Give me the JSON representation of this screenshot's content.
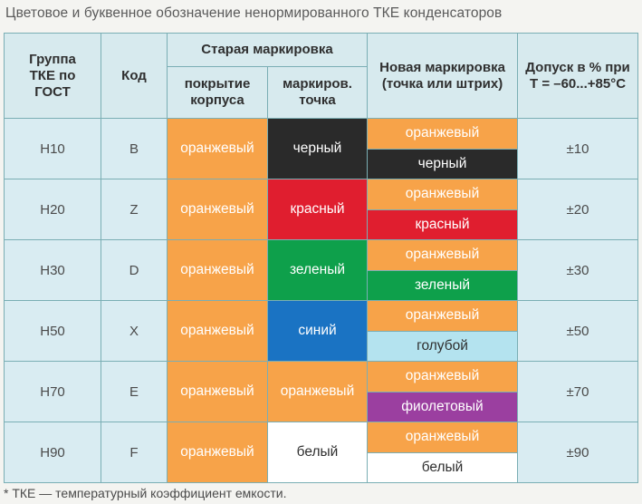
{
  "title": "Цветовое и буквенное обозначение ненормированного ТКЕ конденсаторов",
  "footnote": "* ТКЕ — температурный коэффициент емкости.",
  "headers": {
    "group": "Группа ТКЕ по ГОСТ",
    "code": "Код",
    "old_marking": "Старая маркировка",
    "old_coating": "покрытие корпуса",
    "old_dot": "маркиров. точка",
    "new_marking": "Новая маркировка (точка или штрих)",
    "tolerance": "Допуск в % при Т = –60...+85°С"
  },
  "colors": {
    "orange": "#f7a349",
    "black": "#2a2a2a",
    "red": "#e01e2f",
    "green": "#0ea04b",
    "blue": "#1a73c3",
    "light_blue": "#b4e3ef",
    "purple": "#9b3fa0",
    "white": "#ffffff",
    "header_bg": "#d7eaee",
    "row_bg": "#d9ecf2",
    "border": "#7aaeb4"
  },
  "rows": [
    {
      "group": "Н10",
      "code": "B",
      "coating": "оранжевый",
      "dot": "черный",
      "new_top": "оранжевый",
      "new_bottom": "черный",
      "tolerance": "±10"
    },
    {
      "group": "Н20",
      "code": "Z",
      "coating": "оранжевый",
      "dot": "красный",
      "new_top": "оранжевый",
      "new_bottom": "красный",
      "tolerance": "±20"
    },
    {
      "group": "Н30",
      "code": "D",
      "coating": "оранжевый",
      "dot": "зеленый",
      "new_top": "оранжевый",
      "new_bottom": "зеленый",
      "tolerance": "±30"
    },
    {
      "group": "Н50",
      "code": "X",
      "coating": "оранжевый",
      "dot": "синий",
      "new_top": "оранжевый",
      "new_bottom": "голубой",
      "tolerance": "±50"
    },
    {
      "group": "Н70",
      "code": "E",
      "coating": "оранжевый",
      "dot": "оранжевый",
      "new_top": "оранжевый",
      "new_bottom": "фиолетовый",
      "tolerance": "±70"
    },
    {
      "group": "Н90",
      "code": "F",
      "coating": "оранжевый",
      "dot": "белый",
      "new_top": "оранжевый",
      "new_bottom": "белый",
      "tolerance": "±90"
    }
  ]
}
